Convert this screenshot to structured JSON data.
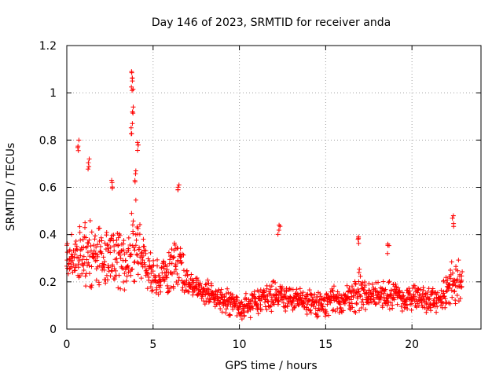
{
  "chart_data": {
    "type": "scatter",
    "title": "Day 146 of 2023, SRMTID for receiver anda",
    "xlabel": "GPS time / hours",
    "ylabel": "SRMTID / TECUs",
    "xlim": [
      0,
      24
    ],
    "ylim": [
      0,
      1.2
    ],
    "x_ticks": [
      0,
      5,
      10,
      15,
      20
    ],
    "x_tick_labels": [
      "0",
      "5",
      "10",
      "15",
      "20"
    ],
    "y_ticks": [
      0,
      0.2,
      0.4,
      0.6,
      0.8,
      1.0,
      1.2
    ],
    "y_tick_labels": [
      "0",
      "0.2",
      "0.4",
      "0.6",
      "0.8",
      "1",
      "1.2"
    ],
    "grid": true,
    "marker": "+",
    "color": "#ff0000",
    "series": [
      {
        "name": "SRMTID",
        "x_start": 0,
        "x_end": 22.9,
        "x_step": 0.05,
        "envelope_hours": [
          0,
          0.5,
          1,
          1.5,
          2,
          2.5,
          3,
          3.5,
          3.8,
          4,
          4.3,
          4.7,
          5,
          5.5,
          6,
          6.5,
          7,
          7.5,
          8,
          8.5,
          9,
          9.5,
          10,
          10.5,
          11,
          11.5,
          12,
          12.5,
          13,
          13.5,
          14,
          14.5,
          15,
          15.5,
          16,
          16.5,
          17,
          17.5,
          18,
          18.5,
          19,
          19.5,
          20,
          20.5,
          21,
          21.5,
          22,
          22.5,
          22.9
        ],
        "envelope_median": [
          0.3,
          0.33,
          0.35,
          0.32,
          0.3,
          0.28,
          0.3,
          0.27,
          0.3,
          0.36,
          0.33,
          0.26,
          0.24,
          0.22,
          0.26,
          0.28,
          0.2,
          0.17,
          0.16,
          0.14,
          0.12,
          0.11,
          0.09,
          0.1,
          0.12,
          0.13,
          0.15,
          0.14,
          0.13,
          0.12,
          0.12,
          0.11,
          0.1,
          0.12,
          0.12,
          0.14,
          0.16,
          0.14,
          0.14,
          0.15,
          0.14,
          0.13,
          0.13,
          0.13,
          0.12,
          0.12,
          0.15,
          0.22,
          0.2
        ],
        "envelope_spread": [
          0.08,
          0.1,
          0.16,
          0.14,
          0.12,
          0.1,
          0.12,
          0.1,
          0.2,
          0.16,
          0.1,
          0.08,
          0.08,
          0.08,
          0.1,
          0.12,
          0.06,
          0.05,
          0.05,
          0.05,
          0.05,
          0.05,
          0.04,
          0.05,
          0.05,
          0.05,
          0.06,
          0.05,
          0.05,
          0.05,
          0.05,
          0.05,
          0.05,
          0.05,
          0.05,
          0.06,
          0.08,
          0.06,
          0.06,
          0.07,
          0.05,
          0.05,
          0.05,
          0.05,
          0.05,
          0.05,
          0.07,
          0.1,
          0.06
        ],
        "notable_peaks": [
          {
            "x": 0.7,
            "y": 0.8
          },
          {
            "x": 1.3,
            "y": 0.72
          },
          {
            "x": 2.6,
            "y": 0.63
          },
          {
            "x": 3.75,
            "y": 1.09
          },
          {
            "x": 3.8,
            "y": 1.05
          },
          {
            "x": 3.85,
            "y": 0.94
          },
          {
            "x": 3.8,
            "y": 0.87
          },
          {
            "x": 4.1,
            "y": 0.79
          },
          {
            "x": 4.0,
            "y": 0.67
          },
          {
            "x": 6.5,
            "y": 0.61
          },
          {
            "x": 12.3,
            "y": 0.44
          },
          {
            "x": 16.9,
            "y": 0.39
          },
          {
            "x": 18.6,
            "y": 0.36
          },
          {
            "x": 22.4,
            "y": 0.48
          }
        ]
      }
    ]
  }
}
